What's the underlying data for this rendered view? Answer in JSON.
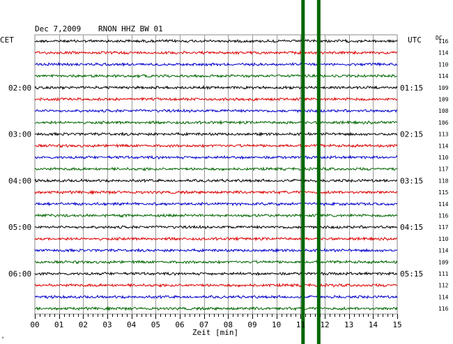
{
  "header": {
    "date": "Dec 7,2009",
    "station": "RNON HHZ BW 01",
    "left_tz": "CET",
    "right_tz": "UTC",
    "dc_label": "DC",
    "corner_mark": "∘"
  },
  "chart_data": {
    "type": "line",
    "title": "",
    "xlabel": "Zeit [min]",
    "ylabel": "",
    "xlim": [
      0,
      15
    ],
    "x_ticks": [
      "00",
      "01",
      "02",
      "03",
      "04",
      "05",
      "06",
      "07",
      "08",
      "09",
      "10",
      "11",
      "12",
      "13",
      "14",
      "15"
    ],
    "trace_interval_min": 15,
    "trace_count": 24,
    "trace_colors": [
      "#000000",
      "#dd0000",
      "#0000cc",
      "#006600"
    ],
    "left_hour_labels": [
      {
        "trace": 4,
        "text": "02:00"
      },
      {
        "trace": 8,
        "text": "03:00"
      },
      {
        "trace": 12,
        "text": "04:00"
      },
      {
        "trace": 16,
        "text": "05:00"
      },
      {
        "trace": 20,
        "text": "06:00"
      }
    ],
    "right_hour_labels": [
      {
        "trace": 4,
        "text": "01:15"
      },
      {
        "trace": 8,
        "text": "02:15"
      },
      {
        "trace": 12,
        "text": "03:15"
      },
      {
        "trace": 16,
        "text": "04:15"
      },
      {
        "trace": 20,
        "text": "05:15"
      }
    ],
    "dc_offsets": [
      "116",
      "114",
      "110",
      "114",
      "109",
      "109",
      "108",
      "106",
      "113",
      "114",
      "110",
      "117",
      "118",
      "115",
      "114",
      "116",
      "117",
      "110",
      "114",
      "109",
      "111",
      "112",
      "114",
      "116"
    ],
    "events": [
      {
        "start_trace": 0,
        "x_min": 11.1,
        "color": "#006600"
      },
      {
        "start_trace": 0,
        "x_min": 11.75,
        "color": "#006600"
      }
    ],
    "grid": true
  }
}
